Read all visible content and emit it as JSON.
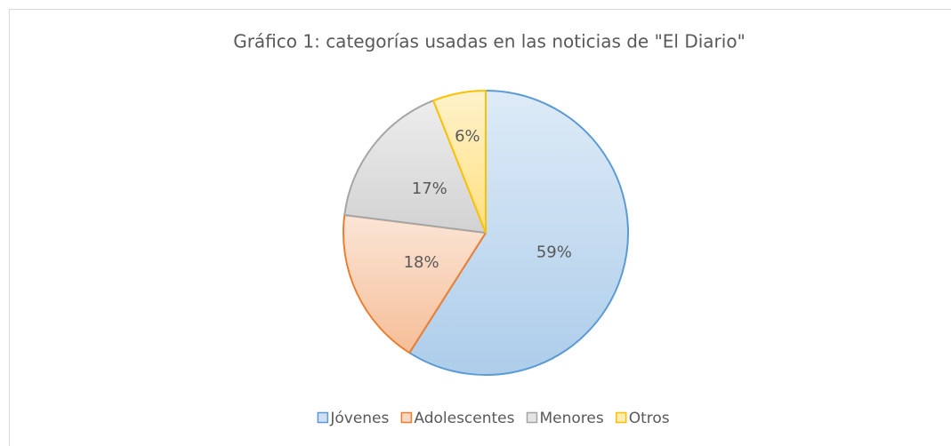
{
  "chart_data": {
    "type": "pie",
    "title": "Gráfico 1: categorías usadas en las noticias de \"El Diario\"",
    "categories": [
      "Jóvenes",
      "Adolescentes",
      "Menores",
      "Otros"
    ],
    "values": [
      59,
      18,
      17,
      6
    ],
    "value_labels": [
      "59%",
      "18%",
      "17%",
      "6%"
    ],
    "colors": [
      "#5b9bd5",
      "#ed7d31",
      "#a5a5a5",
      "#ffc000"
    ],
    "legend": "bottom"
  }
}
